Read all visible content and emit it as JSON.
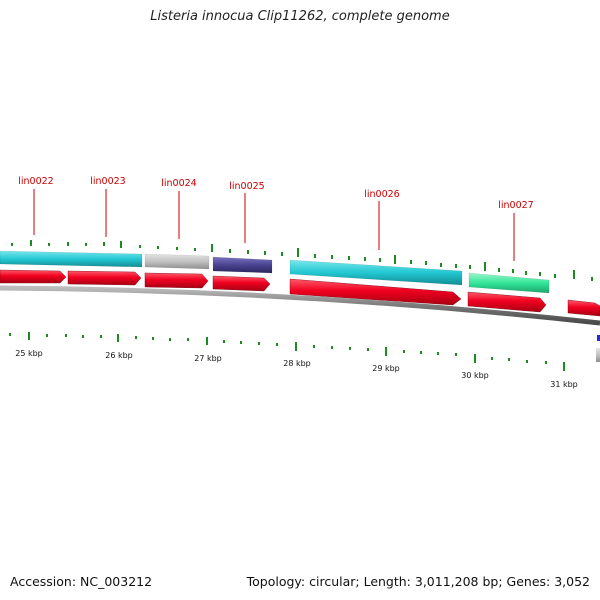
{
  "title": "Listeria innocua Clip11262, complete genome",
  "footer": {
    "accession": "Accession: NC_003212",
    "summary": "Topology: circular; Length: 3,011,208 bp; Genes: 3,052"
  },
  "colors": {
    "gene_label": "#cc0000",
    "backbone": "#7a7a7a",
    "cds_red": "#e8001c",
    "cyan": "#22c8d2",
    "gray": "#bdbdbd",
    "purple": "#4a4490",
    "mint": "#33e69a",
    "tick_green": "#1f8a1f"
  },
  "gene_labels": [
    "lin0022",
    "lin0023",
    "lin0024",
    "lin0025",
    "lin0026",
    "lin0027"
  ],
  "kbp_labels": [
    "25 kbp",
    "26 kbp",
    "27 kbp",
    "28 kbp",
    "29 kbp",
    "30 kbp",
    "31 kbp"
  ]
}
